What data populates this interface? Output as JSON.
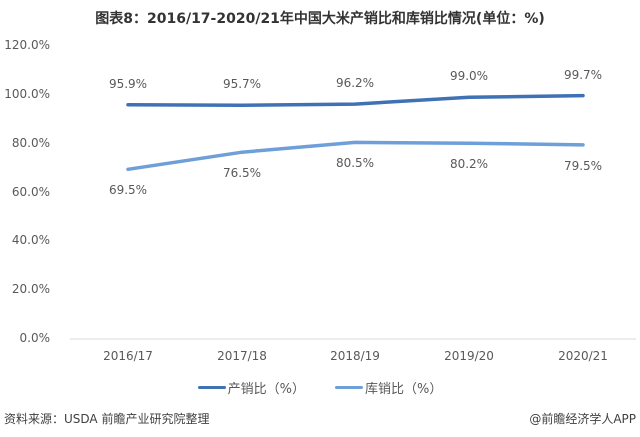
{
  "title": "图表8：2016/17-2020/21年中国大米产销比和库销比情况(单位：%)",
  "chart_data": {
    "type": "line",
    "title": "图表8：2016/17-2020/21年中国大米产销比和库销比情况(单位：%)",
    "categories": [
      "2016/17",
      "2017/18",
      "2018/19",
      "2019/20",
      "2020/21"
    ],
    "series": [
      {
        "name": "产销比（%）",
        "values": [
          95.9,
          95.7,
          96.2,
          99.0,
          99.7
        ],
        "color": "#3f72b4"
      },
      {
        "name": "库销比（%）",
        "values": [
          69.5,
          76.5,
          80.5,
          80.2,
          79.5
        ],
        "color": "#6f9fd8"
      }
    ],
    "data_labels": {
      "series0": [
        "95.9%",
        "95.7%",
        "96.2%",
        "99.0%",
        "99.7%"
      ],
      "series1": [
        "69.5%",
        "76.5%",
        "80.5%",
        "80.2%",
        "79.5%"
      ]
    },
    "xlabel": "",
    "ylabel": "",
    "ylim": [
      0,
      120
    ],
    "yticks": [
      "0.0%",
      "20.0%",
      "40.0%",
      "60.0%",
      "80.0%",
      "100.0%",
      "120.0%"
    ],
    "grid": false,
    "legend_position": "bottom"
  },
  "legend": {
    "items": [
      {
        "label": "产销比（%）",
        "color": "#3f72b4"
      },
      {
        "label": "库销比（%）",
        "color": "#6f9fd8"
      }
    ]
  },
  "footer": {
    "source": "资料来源：USDA 前瞻产业研究院整理",
    "credit": "@前瞻经济学人APP"
  }
}
